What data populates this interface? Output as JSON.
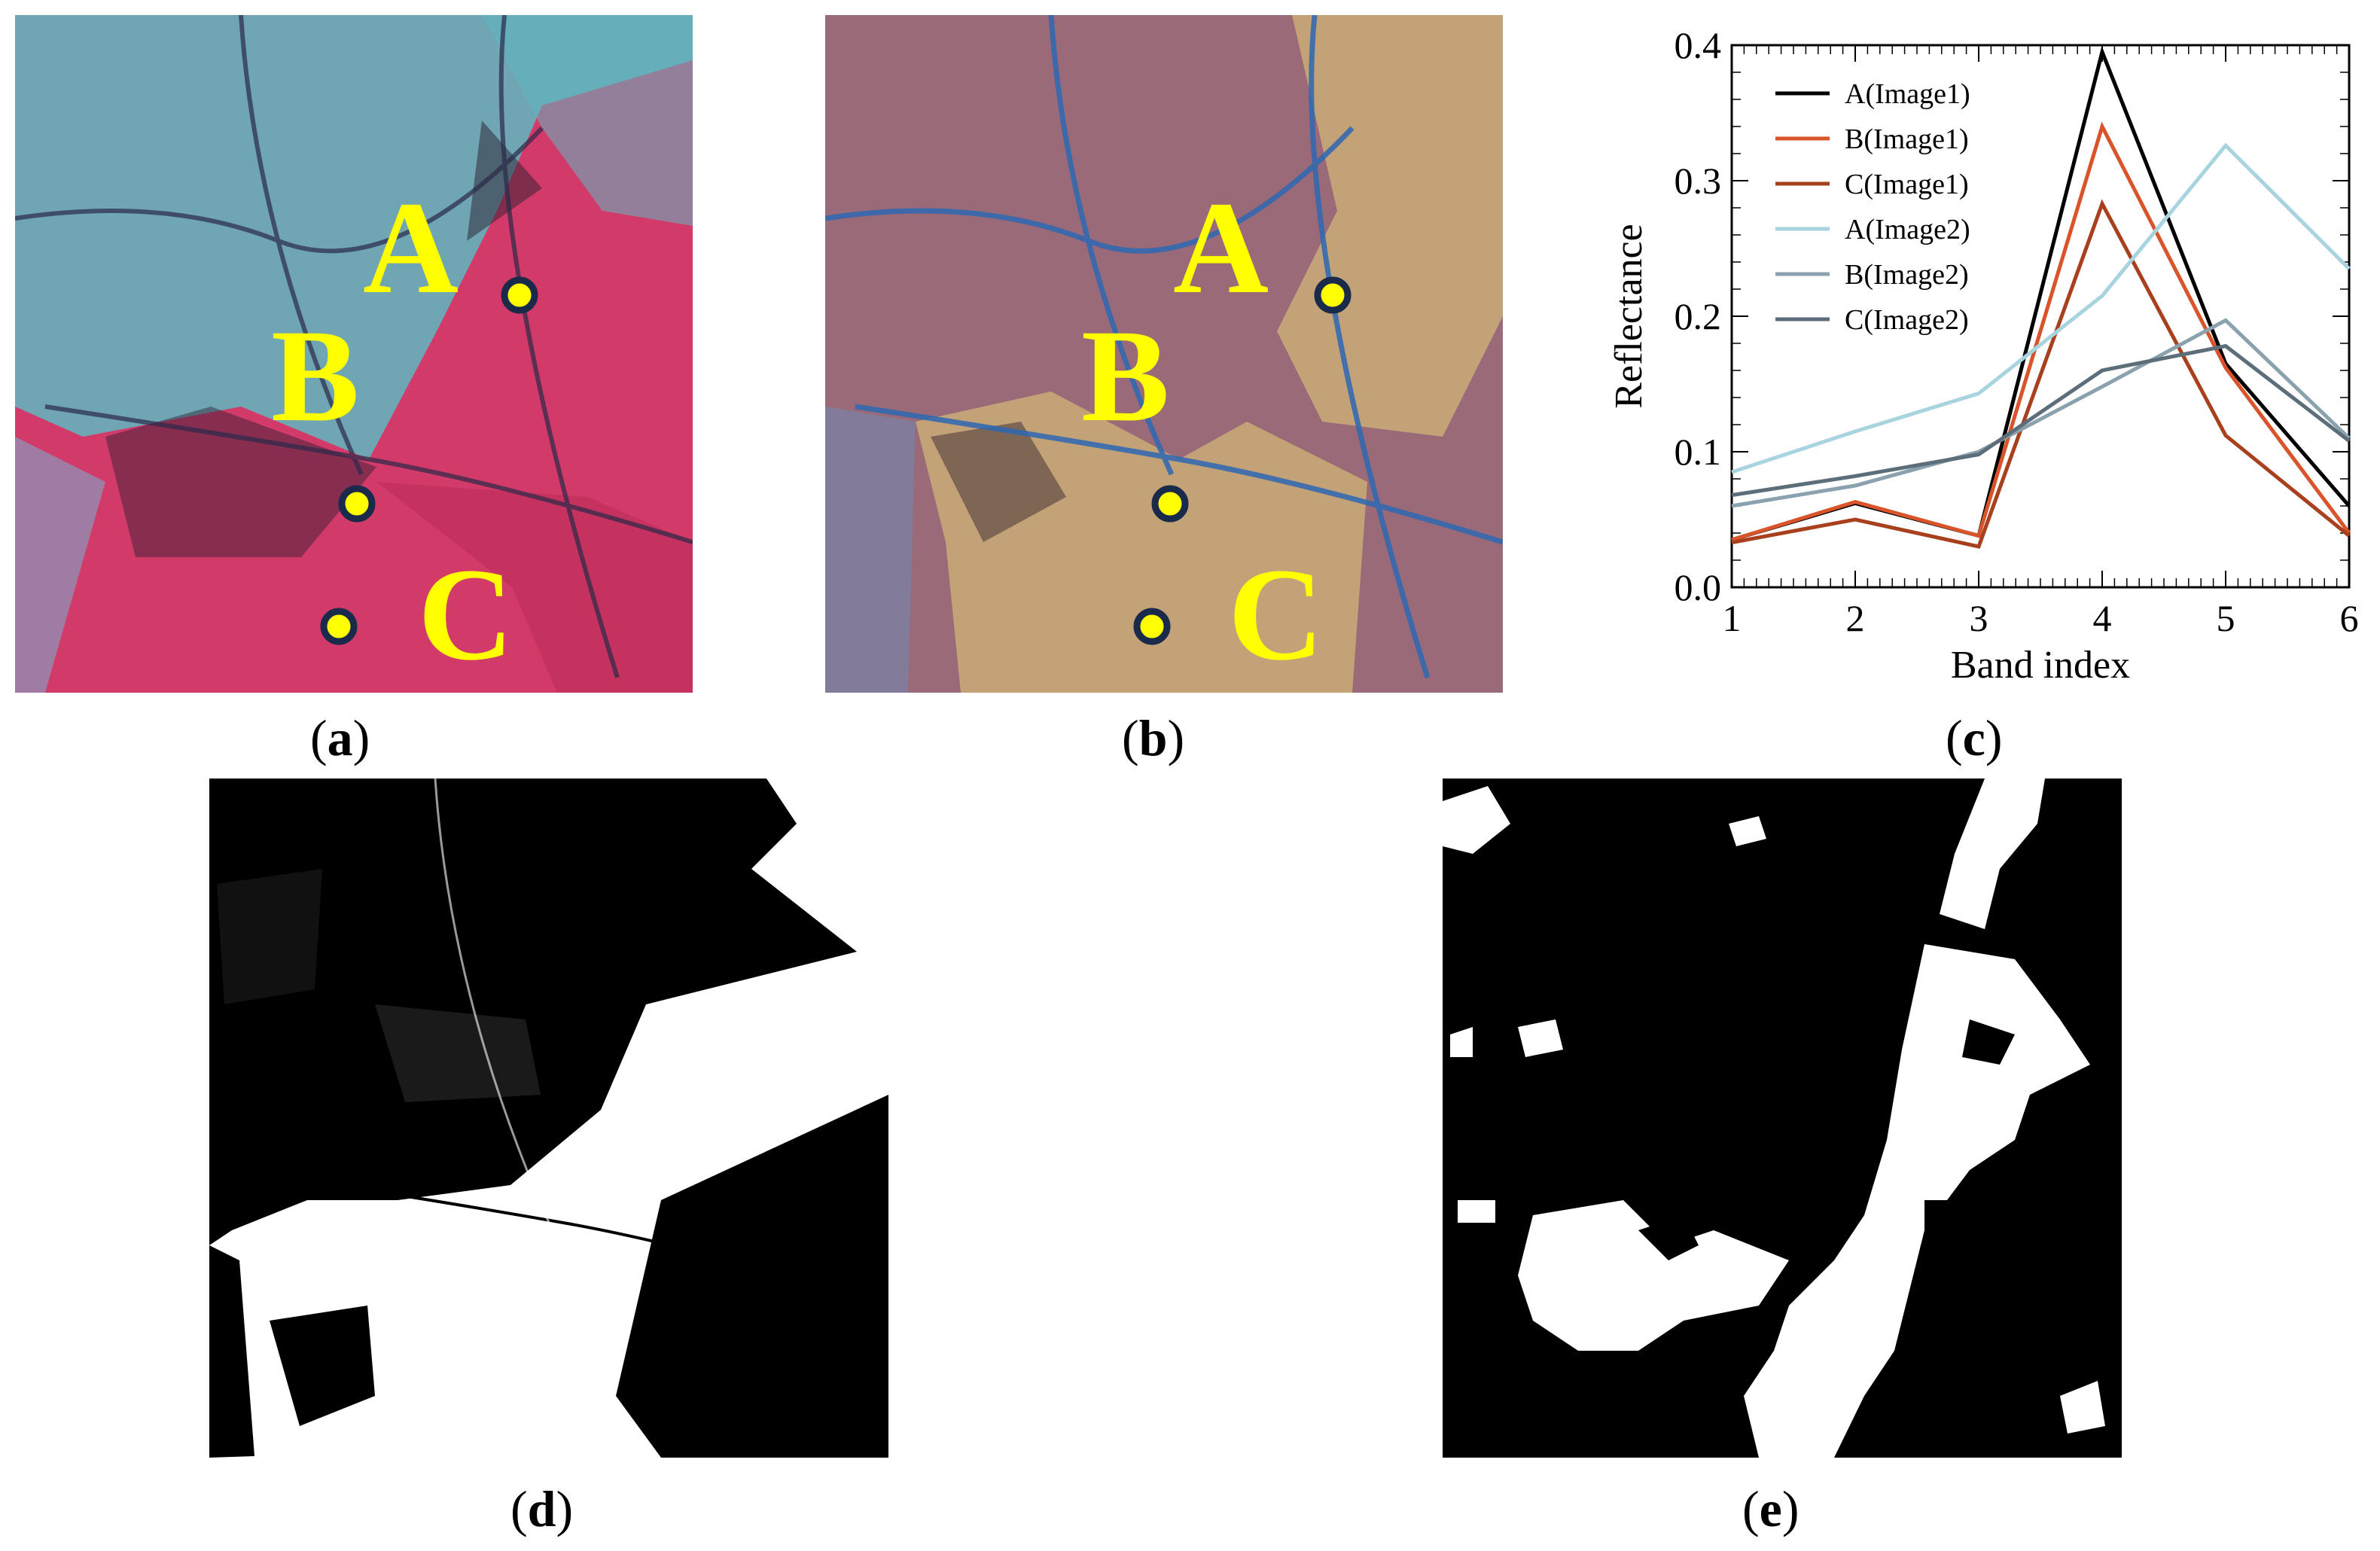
{
  "panels": {
    "a": {
      "caption_open": "(",
      "caption_letter": "a",
      "caption_close": ")",
      "site_labels": [
        "A",
        "B",
        "C"
      ]
    },
    "b": {
      "caption_open": "(",
      "caption_letter": "b",
      "caption_close": ")",
      "site_labels": [
        "A",
        "B",
        "C"
      ]
    },
    "c": {
      "caption_open": "(",
      "caption_letter": "c",
      "caption_close": ")"
    },
    "d": {
      "caption_open": "(",
      "caption_letter": "d",
      "caption_close": ")"
    },
    "e": {
      "caption_open": "(",
      "caption_letter": "e",
      "caption_close": ")"
    }
  },
  "colors": {
    "image1_base": "#d23a6a",
    "image1_water": "#5fc3c8",
    "image2_base": "#9a6a78",
    "image2_bare": "#c8a878",
    "site_marker_fill": "#ffff00",
    "site_marker_ring": "#1a2a4a",
    "site_label": "#ffff00"
  },
  "chart_data": {
    "type": "line",
    "xlabel": "Band index",
    "ylabel": "Reflectance",
    "xlim": [
      1,
      6
    ],
    "ylim": [
      0,
      0.4
    ],
    "x": [
      1,
      2,
      3,
      4,
      5,
      6
    ],
    "xticks": [
      "1",
      "2",
      "3",
      "4",
      "5",
      "6"
    ],
    "yticks": [
      "0.0",
      "0.1",
      "0.2",
      "0.3",
      "0.4"
    ],
    "legend_position": "top-left",
    "series": [
      {
        "name": "A(Image1)",
        "color": "#000000",
        "values": [
          0.035,
          0.062,
          0.038,
          0.395,
          0.165,
          0.06
        ]
      },
      {
        "name": "B(Image1)",
        "color": "#d9542a",
        "values": [
          0.035,
          0.063,
          0.038,
          0.34,
          0.162,
          0.04
        ]
      },
      {
        "name": "C(Image1)",
        "color": "#a8401e",
        "values": [
          0.033,
          0.05,
          0.03,
          0.283,
          0.112,
          0.038
        ]
      },
      {
        "name": "A(Image2)",
        "color": "#a8d4e0",
        "values": [
          0.085,
          0.115,
          0.143,
          0.215,
          0.326,
          0.235
        ]
      },
      {
        "name": "B(Image2)",
        "color": "#8aa2ae",
        "values": [
          0.06,
          0.075,
          0.1,
          0.148,
          0.197,
          0.11
        ]
      },
      {
        "name": "C(Image2)",
        "color": "#5b6e7a",
        "values": [
          0.068,
          0.082,
          0.098,
          0.16,
          0.178,
          0.108
        ]
      }
    ]
  }
}
